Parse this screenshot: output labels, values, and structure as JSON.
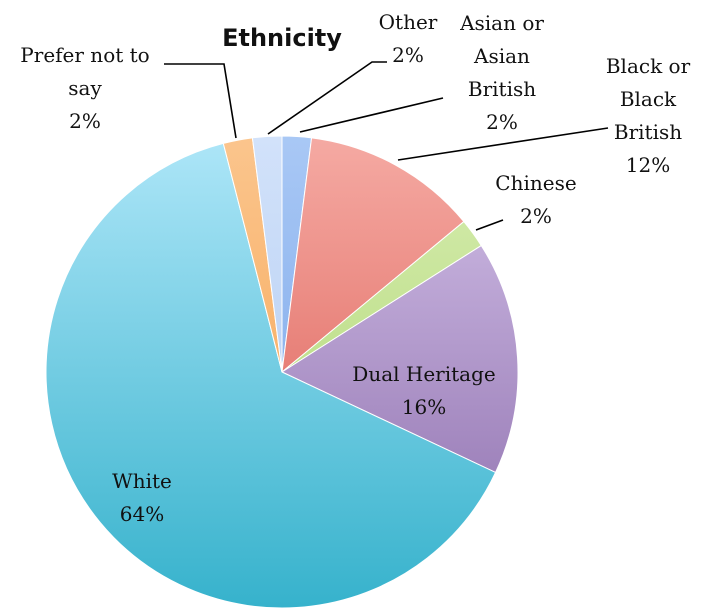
{
  "chart_data": {
    "type": "pie",
    "title": "Ethnicity",
    "slices": [
      {
        "label": "Asian or Asian British",
        "label_lines": [
          "Asian or",
          "Asian",
          "British"
        ],
        "value": 2,
        "value_label": "2%",
        "color": "#6f9ee6",
        "color_light": "#a9c8f5"
      },
      {
        "label": "Black or Black British",
        "label_lines": [
          "Black or",
          "Black",
          "British"
        ],
        "value": 12,
        "value_label": "12%",
        "color": "#d9534a",
        "color_light": "#f5aaa3"
      },
      {
        "label": "Chinese",
        "label_lines": [
          "Chinese"
        ],
        "value": 2,
        "value_label": "2%",
        "color": "#a9d36a",
        "color_light": "#d7edb1"
      },
      {
        "label": "Dual Heritage",
        "label_lines": [
          "Dual Heritage"
        ],
        "value": 16,
        "value_label": "16%",
        "color": "#8a6aaa",
        "color_light": "#d3c1e8"
      },
      {
        "label": "White",
        "label_lines": [
          "White"
        ],
        "value": 64,
        "value_label": "64%",
        "color": "#36b2cc",
        "color_light": "#aee6f8"
      },
      {
        "label": "Prefer not to say",
        "label_lines": [
          "Prefer not to",
          "say"
        ],
        "value": 2,
        "value_label": "2%",
        "color": "#f5a04a",
        "color_light": "#fbc58d"
      },
      {
        "label": "Other",
        "label_lines": [
          "Other"
        ],
        "value": 2,
        "value_label": "2%",
        "color": "#aac6f0",
        "color_light": "#d2e2fa"
      }
    ]
  }
}
